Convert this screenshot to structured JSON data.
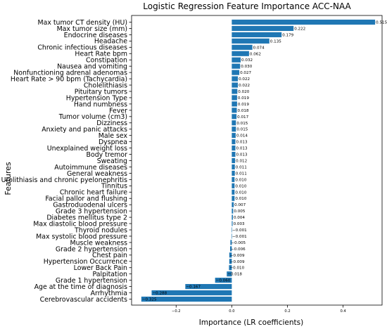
{
  "chart_data": {
    "type": "bar",
    "orientation": "horizontal",
    "title": "Logistic Regression Feature Importance ACC-NAA",
    "xlabel": "Importance (LR coefficients)",
    "ylabel": "Features",
    "xlim": [
      -0.36,
      0.54
    ],
    "xticks": [
      -0.2,
      0.0,
      0.2,
      0.4
    ],
    "xtick_labels": [
      "−0.2",
      "0.0",
      "0.2",
      "0.4"
    ],
    "bar_color": "#1f77b4",
    "grid": false,
    "categories": [
      "Max tumor CT density (HU)",
      "Max tumor size (mm)",
      "Endocrine diseases",
      "Headache",
      "Chronic infectious diseases",
      "Heart Rate bpm",
      "Constipation",
      "Nausea and vomiting",
      "Nonfunctioning adrenal adenomas",
      "Heart Rate > 90 bpm (Tachycardia)",
      "Cholelithiasis",
      "Pituitary tumors",
      "Hypertension Type",
      "Hand numbness",
      "Fever",
      "Tumor volume (cm3)",
      "Dizziness",
      "Anxiety and panic attacks",
      "Male sex",
      "Dyspnea",
      "Unexplained weight loss",
      "Body tremor",
      "Sweating",
      "Autoimmune diseases",
      "General weakness",
      "Urolithiasis and chronic pyelonephritis",
      "Tinnitus",
      "Chronic heart failure",
      "Facial pallor and flushing",
      "Gastroduodenal ulcers",
      "Grade 3 hypertension",
      "Diabetes mellitus type 2",
      "Max diastolic blood pressure",
      "Thyroid nodules",
      "Max systolic blood pressure",
      "Muscle weakness",
      "Grade 2 hypertension",
      "Chest pain",
      "Hypertension Occurrence",
      "Lower Back Pain",
      "Palpitation",
      "Grade 1 hypertension",
      "Age at the time of diagnosis",
      "Arrhythmia",
      "Cerebrovascular accidents"
    ],
    "values": [
      0.515,
      0.222,
      0.179,
      0.135,
      0.074,
      0.062,
      0.032,
      0.03,
      0.027,
      0.022,
      0.022,
      0.02,
      0.019,
      0.019,
      0.018,
      0.017,
      0.015,
      0.015,
      0.014,
      0.013,
      0.013,
      0.013,
      0.012,
      0.011,
      0.011,
      0.01,
      0.01,
      0.01,
      0.01,
      0.007,
      0.005,
      0.004,
      0.003,
      -0.001,
      -0.001,
      -0.005,
      -0.006,
      -0.009,
      -0.009,
      -0.01,
      -0.018,
      -0.06,
      -0.167,
      -0.288,
      -0.325
    ],
    "value_labels": [
      "0.515",
      "0.222",
      "0.179",
      "0.135",
      "0.074",
      "0.062",
      "0.032",
      "0.030",
      "0.027",
      "0.022",
      "0.022",
      "0.020",
      "0.019",
      "0.019",
      "0.018",
      "0.017",
      "0.015",
      "0.015",
      "0.014",
      "0.013",
      "0.013",
      "0.013",
      "0.012",
      "0.011",
      "0.011",
      "0.010",
      "0.010",
      "0.010",
      "0.010",
      "0.007",
      "0.005",
      "0.004",
      "0.003",
      "−0.001",
      "−0.001",
      "−0.005",
      "−0.006",
      "−0.009",
      "−0.009",
      "−0.010",
      "−0.018",
      "−0.060",
      "−0.167",
      "−0.288",
      "−0.325"
    ]
  }
}
